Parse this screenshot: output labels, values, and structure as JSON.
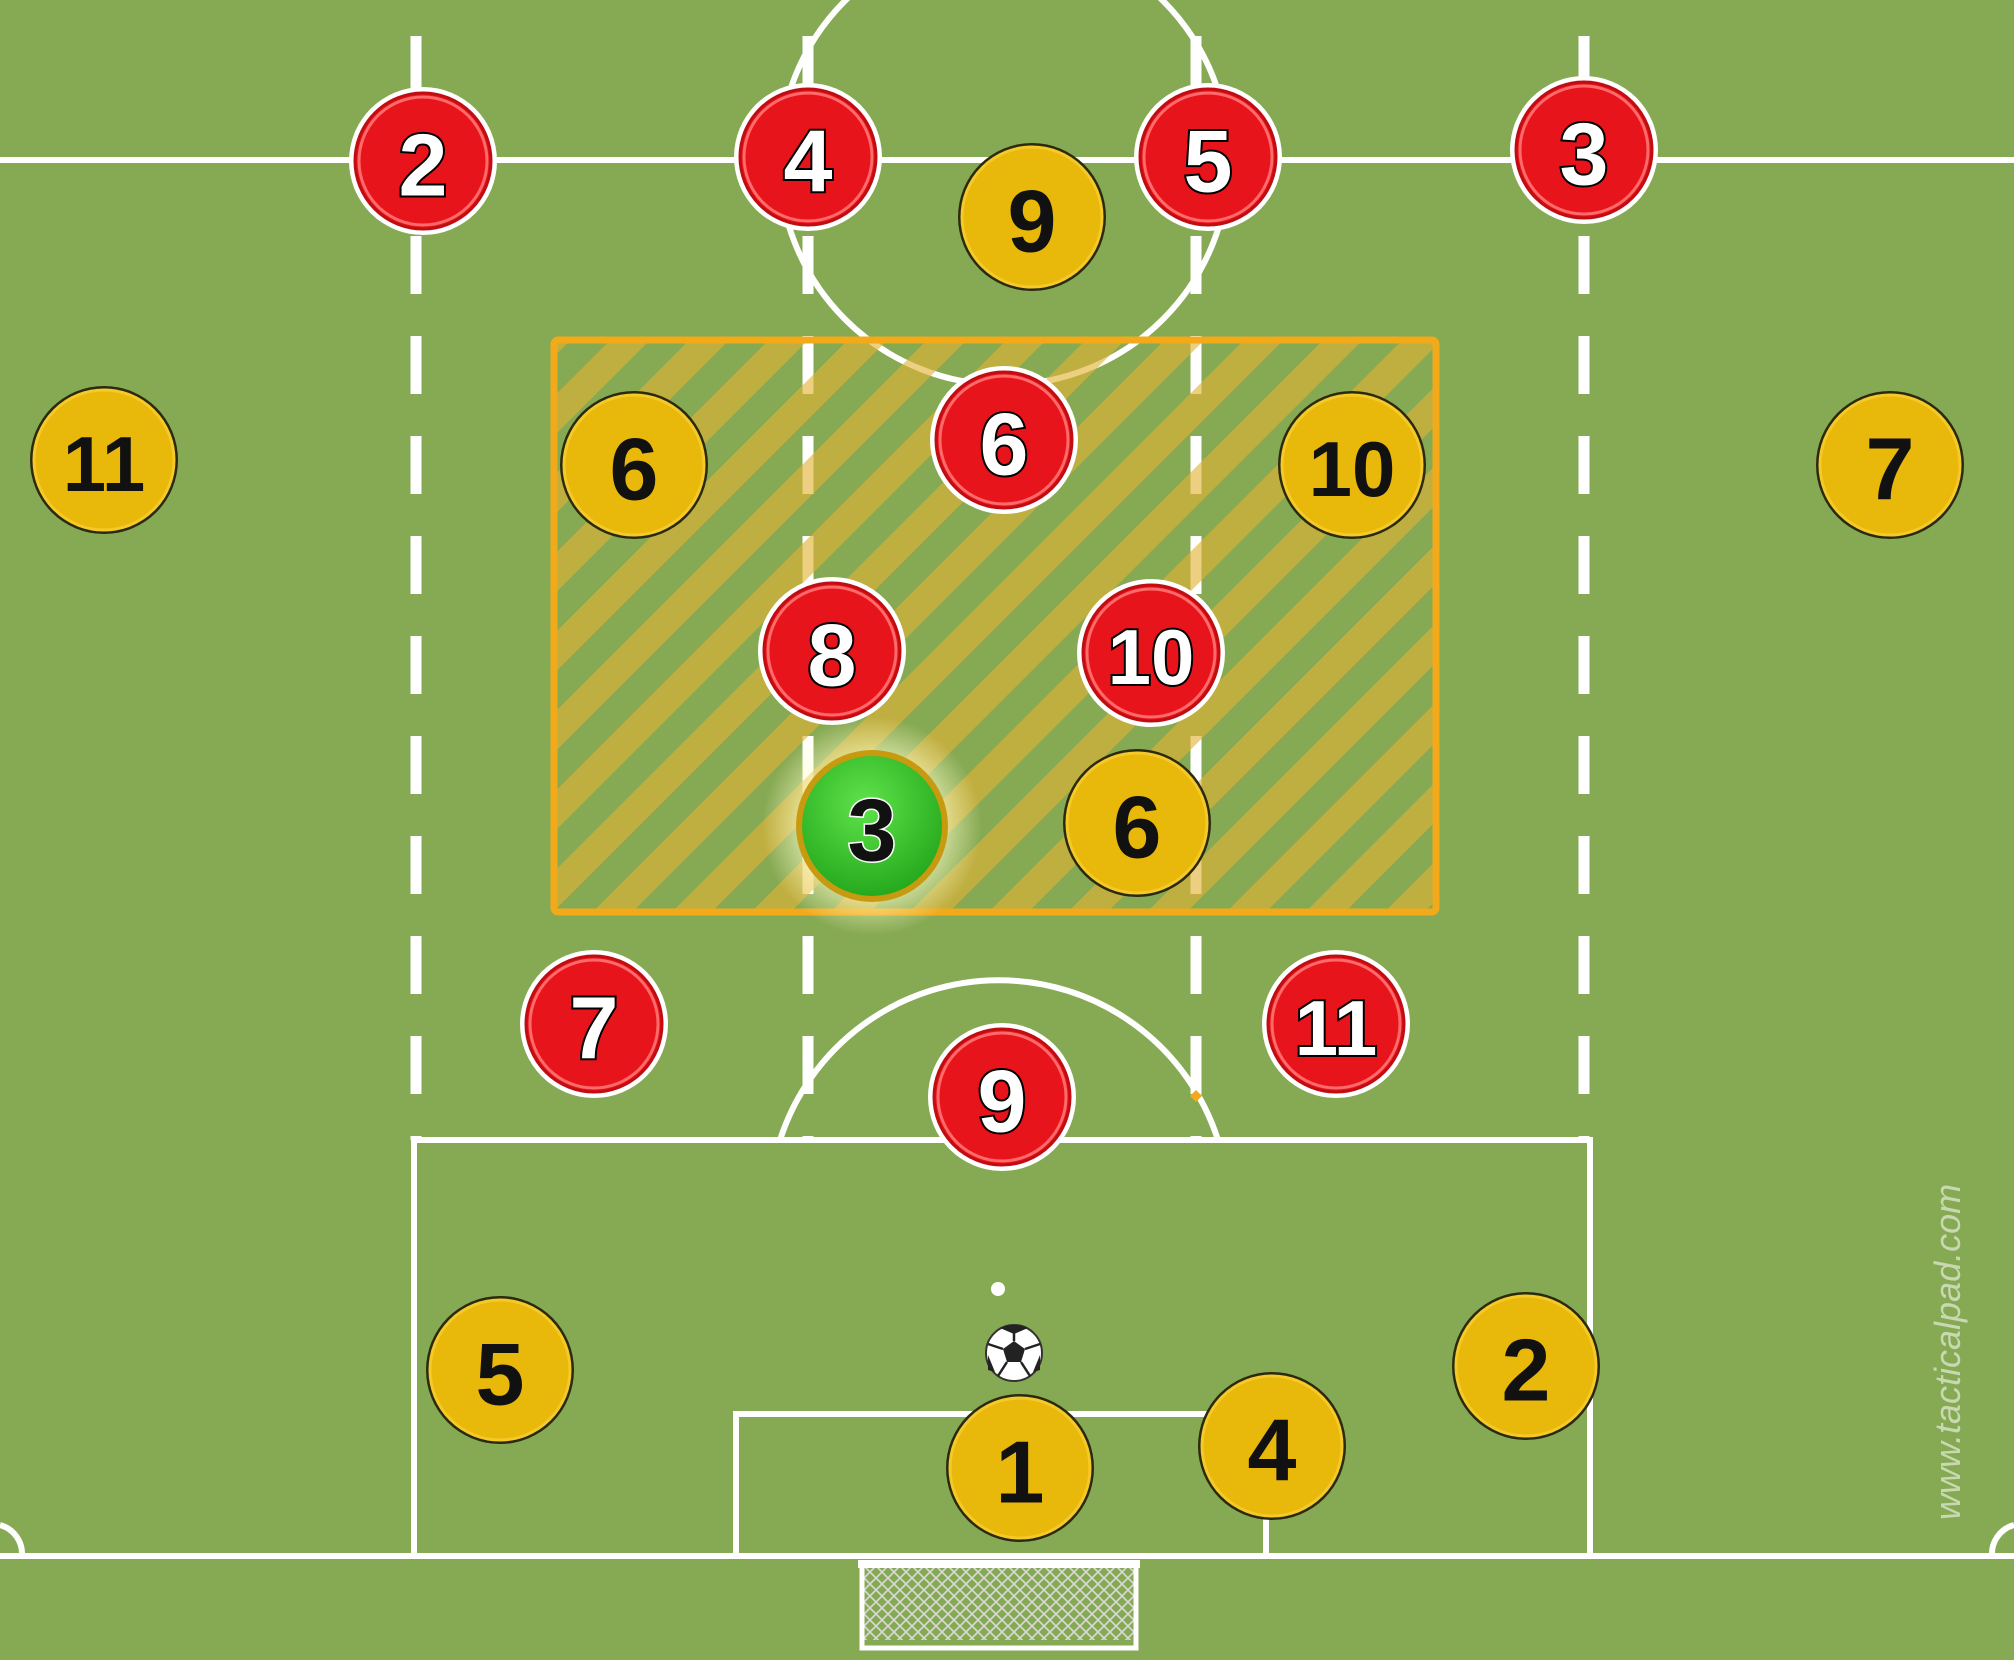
{
  "colors": {
    "pitch_green": "#86a953",
    "pitch_green_dark": "#7a9e4a",
    "line_white": "#ffffff",
    "zone_orange": "#f2a91a",
    "red_team": "#e8141b",
    "yellow_team": "#e8b90a",
    "highlight_green": "#36c22a"
  },
  "watermark": "www.tacticalpad.com",
  "red_players": [
    "2",
    "4",
    "5",
    "3",
    "6",
    "8",
    "10",
    "7",
    "9",
    "11"
  ],
  "yellow_players": [
    "9",
    "11",
    "6",
    "10",
    "7",
    "6",
    "5",
    "1",
    "4",
    "2"
  ],
  "highlighted_player": "3",
  "icons": {
    "ball": "soccer-ball-icon",
    "goal": "goal-net-icon"
  }
}
